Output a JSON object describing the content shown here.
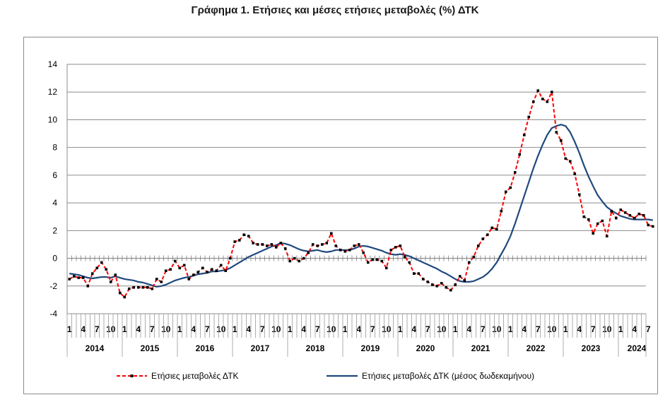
{
  "title": "Γράφημα 1. Ετήσιες και μέσες ετήσιες μεταβολές (%) ΔΤΚ",
  "chart_data": {
    "type": "line",
    "title": "Γράφημα 1. Ετήσιες και μέσες ετήσιες μεταβολές (%) ΔΤΚ",
    "xlabel": "",
    "ylabel": "",
    "ylim": [
      -4,
      14
    ],
    "yticks": [
      "-4",
      "-2",
      "0",
      "2",
      "4",
      "6",
      "8",
      "10",
      "12",
      "14"
    ],
    "grid": true,
    "legend_position": "bottom",
    "x_start": "2014-01",
    "month_tick_labels": [
      "1",
      "4",
      "7",
      "10"
    ],
    "years": [
      "2014",
      "2015",
      "2016",
      "2017",
      "2018",
      "2019",
      "2020",
      "2021",
      "2022",
      "2023",
      "2024"
    ],
    "series": [
      {
        "name": "Ετήσιες μεταβολές ΔΤΚ",
        "color": "#ff0000",
        "style": "dashed-with-markers",
        "values": [
          -1.5,
          -1.3,
          -1.4,
          -1.4,
          -2.0,
          -1.1,
          -0.7,
          -0.3,
          -0.8,
          -1.7,
          -1.2,
          -2.5,
          -2.8,
          -2.2,
          -2.1,
          -2.1,
          -2.1,
          -2.1,
          -2.2,
          -1.5,
          -1.7,
          -0.9,
          -0.8,
          -0.2,
          -0.7,
          -0.5,
          -1.5,
          -1.2,
          -1.0,
          -0.7,
          -1.0,
          -0.8,
          -0.9,
          -0.5,
          -0.9,
          0.0,
          1.2,
          1.3,
          1.7,
          1.6,
          1.1,
          1.0,
          1.0,
          0.9,
          1.0,
          0.8,
          1.1,
          0.7,
          -0.2,
          0.0,
          -0.2,
          0.0,
          0.4,
          1.0,
          0.9,
          1.0,
          1.1,
          1.8,
          0.9,
          0.6,
          0.5,
          0.6,
          0.9,
          1.0,
          0.4,
          -0.3,
          -0.1,
          -0.1,
          -0.2,
          -0.7,
          0.6,
          0.8,
          0.9,
          0.1,
          -0.3,
          -1.1,
          -1.1,
          -1.5,
          -1.7,
          -1.9,
          -2.0,
          -1.8,
          -2.1,
          -2.3,
          -1.9,
          -1.3,
          -1.6,
          -0.3,
          0.1,
          0.9,
          1.4,
          1.7,
          2.2,
          2.1,
          3.4,
          4.8,
          5.1,
          6.2,
          7.5,
          8.9,
          10.2,
          11.3,
          12.1,
          11.5,
          11.3,
          12.0,
          9.1,
          8.5,
          7.2,
          7.0,
          6.1,
          4.6,
          3.0,
          2.8,
          1.8,
          2.5,
          2.7,
          1.6,
          3.4,
          2.9,
          3.5,
          3.3,
          3.1,
          2.9,
          3.2,
          3.1,
          2.4,
          2.3
        ]
      },
      {
        "name": "Ετήσιες μεταβολές ΔΤΚ (μέσος δωδεκαμήνου)",
        "color": "#1f497d",
        "style": "solid",
        "values": [
          -1.1,
          -1.15,
          -1.2,
          -1.3,
          -1.4,
          -1.45,
          -1.4,
          -1.35,
          -1.35,
          -1.4,
          -1.3,
          -1.4,
          -1.5,
          -1.55,
          -1.6,
          -1.7,
          -1.75,
          -1.85,
          -1.95,
          -2.05,
          -2.0,
          -1.9,
          -1.75,
          -1.6,
          -1.5,
          -1.4,
          -1.35,
          -1.25,
          -1.15,
          -1.1,
          -1.05,
          -0.95,
          -0.95,
          -0.9,
          -0.85,
          -0.7,
          -0.5,
          -0.3,
          -0.1,
          0.1,
          0.25,
          0.4,
          0.55,
          0.7,
          0.85,
          0.95,
          1.1,
          1.05,
          0.95,
          0.8,
          0.65,
          0.55,
          0.5,
          0.55,
          0.6,
          0.5,
          0.45,
          0.5,
          0.6,
          0.6,
          0.6,
          0.6,
          0.7,
          0.85,
          0.9,
          0.85,
          0.75,
          0.65,
          0.55,
          0.4,
          0.3,
          0.25,
          0.3,
          0.25,
          0.15,
          0.0,
          -0.15,
          -0.3,
          -0.45,
          -0.6,
          -0.75,
          -0.95,
          -1.1,
          -1.3,
          -1.5,
          -1.65,
          -1.7,
          -1.7,
          -1.65,
          -1.5,
          -1.35,
          -1.1,
          -0.75,
          -0.3,
          0.3,
          0.9,
          1.6,
          2.5,
          3.5,
          4.5,
          5.5,
          6.5,
          7.4,
          8.2,
          8.9,
          9.4,
          9.55,
          9.65,
          9.55,
          9.1,
          8.4,
          7.6,
          6.7,
          5.9,
          5.2,
          4.55,
          4.1,
          3.7,
          3.45,
          3.25,
          3.05,
          2.95,
          2.85,
          2.8,
          2.8,
          2.8,
          2.8,
          2.75
        ]
      }
    ]
  }
}
